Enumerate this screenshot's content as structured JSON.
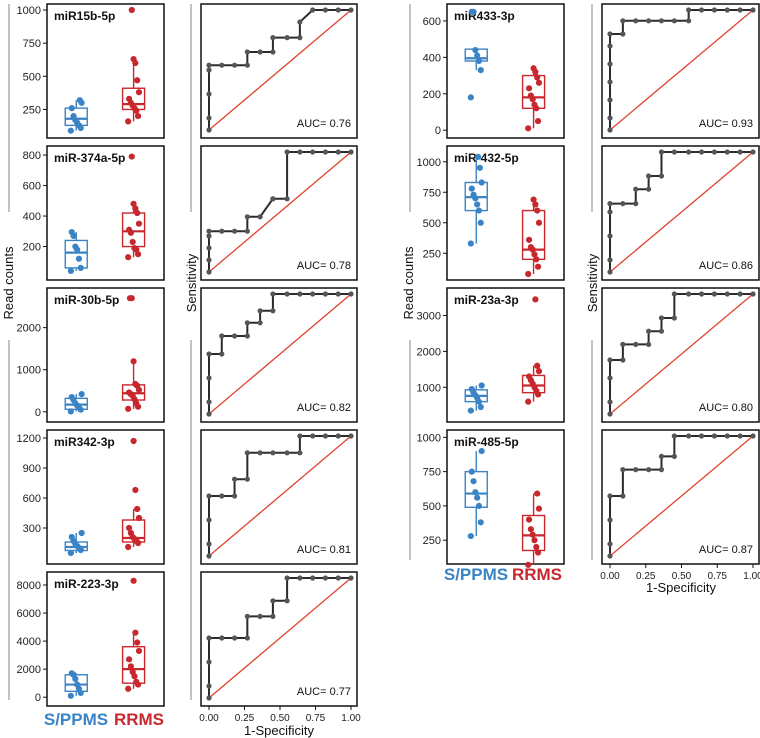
{
  "colors": {
    "spms": "#3a84c6",
    "rrms": "#c8282d",
    "roc_line": "#2b2b2b",
    "roc_point": "#555555",
    "diagonal": "#e0442c"
  },
  "legend": {
    "group1": "S/PPMS",
    "group2": "RRMS"
  },
  "axis_labels": {
    "read_counts": "Read counts",
    "sensitivity": "Sensitivity",
    "specificity": "1-Specificity"
  },
  "roc_ticks": [
    "0.00",
    "0.25",
    "0.50",
    "0.75",
    "1.00"
  ],
  "chart_data": [
    {
      "type": "box",
      "title": "miR15b-5p",
      "ylim": [
        80,
        1000
      ],
      "yticks": [
        250,
        500,
        750,
        1000
      ],
      "groups": [
        {
          "name": "S/PPMS",
          "q1": 130,
          "median": 180,
          "q3": 260,
          "whisker_low": 90,
          "whisker_high": 320,
          "points": [
            90,
            110,
            130,
            150,
            170,
            200,
            260,
            300,
            320
          ]
        },
        {
          "name": "RRMS",
          "q1": 250,
          "median": 290,
          "q3": 410,
          "whisker_low": 160,
          "whisker_high": 630,
          "points": [
            160,
            200,
            240,
            260,
            280,
            300,
            330,
            380,
            470,
            600,
            630,
            1000
          ]
        }
      ],
      "roc": {
        "auc_label": "AUC= 0.76",
        "fpr": [
          0,
          0,
          0,
          0,
          0,
          0.09,
          0.18,
          0.27,
          0.27,
          0.36,
          0.45,
          0.45,
          0.55,
          0.64,
          0.64,
          0.73,
          0.82,
          0.91,
          1.0
        ],
        "tpr": [
          0,
          0.1,
          0.3,
          0.5,
          0.54,
          0.54,
          0.54,
          0.54,
          0.65,
          0.65,
          0.65,
          0.77,
          0.77,
          0.77,
          0.9,
          1.0,
          1.0,
          1.0,
          1.0
        ]
      }
    },
    {
      "type": "box",
      "title": "miR-374a-5p",
      "ylim": [
        20,
        820
      ],
      "yticks": [
        200,
        400,
        600,
        800
      ],
      "groups": [
        {
          "name": "S/PPMS",
          "q1": 60,
          "median": 160,
          "q3": 240,
          "whisker_low": 40,
          "whisker_high": 295,
          "points": [
            40,
            60,
            120,
            180,
            200,
            270,
            295
          ]
        },
        {
          "name": "RRMS",
          "q1": 200,
          "median": 300,
          "q3": 420,
          "whisker_low": 130,
          "whisker_high": 480,
          "points": [
            130,
            150,
            180,
            190,
            230,
            290,
            310,
            350,
            420,
            450,
            480,
            790
          ]
        }
      ],
      "roc": {
        "auc_label": "AUC= 0.78",
        "fpr": [
          0,
          0,
          0,
          0,
          0,
          0.09,
          0.18,
          0.27,
          0.27,
          0.36,
          0.45,
          0.45,
          0.55,
          0.55,
          0.64,
          0.73,
          0.82,
          0.91,
          1.0
        ],
        "tpr": [
          0,
          0.1,
          0.2,
          0.3,
          0.34,
          0.34,
          0.34,
          0.34,
          0.46,
          0.46,
          0.61,
          0.61,
          0.61,
          1.0,
          1.0,
          1.0,
          1.0,
          1.0,
          1.0
        ]
      }
    },
    {
      "type": "box",
      "title": "miR-30b-5p",
      "ylim": [
        -100,
        2800
      ],
      "yticks": [
        0,
        1000,
        2000
      ],
      "groups": [
        {
          "name": "S/PPMS",
          "q1": 60,
          "median": 170,
          "q3": 320,
          "whisker_low": 10,
          "whisker_high": 420,
          "points": [
            10,
            50,
            100,
            150,
            200,
            280,
            350,
            420
          ]
        },
        {
          "name": "RRMS",
          "q1": 280,
          "median": 440,
          "q3": 640,
          "whisker_low": 70,
          "whisker_high": 1200,
          "points": [
            70,
            120,
            200,
            300,
            380,
            420,
            460,
            520,
            620,
            660,
            1200,
            2700,
            2700
          ]
        }
      ],
      "roc": {
        "auc_label": "AUC= 0.82",
        "fpr": [
          0,
          0,
          0,
          0,
          0.09,
          0.09,
          0.18,
          0.27,
          0.27,
          0.36,
          0.36,
          0.45,
          0.45,
          0.55,
          0.64,
          0.73,
          0.82,
          0.91,
          1.0
        ],
        "tpr": [
          0,
          0.1,
          0.3,
          0.5,
          0.5,
          0.65,
          0.65,
          0.65,
          0.76,
          0.76,
          0.86,
          0.86,
          1.0,
          1.0,
          1.0,
          1.0,
          1.0,
          1.0,
          1.0
        ]
      }
    },
    {
      "type": "box",
      "title": "miR342-3p",
      "ylim": [
        0,
        1220
      ],
      "yticks": [
        300,
        600,
        900,
        1200
      ],
      "groups": [
        {
          "name": "S/PPMS",
          "q1": 75,
          "median": 110,
          "q3": 160,
          "whisker_low": 50,
          "whisker_high": 250,
          "points": [
            50,
            80,
            100,
            120,
            140,
            170,
            210,
            250
          ]
        },
        {
          "name": "RRMS",
          "q1": 160,
          "median": 200,
          "q3": 380,
          "whisker_low": 110,
          "whisker_high": 490,
          "points": [
            110,
            150,
            170,
            190,
            210,
            250,
            300,
            400,
            490,
            680,
            1170
          ]
        }
      ],
      "roc": {
        "auc_label": "AUC= 0.81",
        "fpr": [
          0,
          0,
          0,
          0,
          0.09,
          0.18,
          0.18,
          0.27,
          0.27,
          0.36,
          0.45,
          0.55,
          0.64,
          0.64,
          0.73,
          0.82,
          0.91,
          1.0
        ],
        "tpr": [
          0,
          0.1,
          0.3,
          0.5,
          0.5,
          0.5,
          0.64,
          0.64,
          0.86,
          0.86,
          0.86,
          0.86,
          0.86,
          1.0,
          1.0,
          1.0,
          1.0,
          1.0
        ]
      }
    },
    {
      "type": "box",
      "title": "miR-223-3p",
      "ylim": [
        -200,
        8500
      ],
      "yticks": [
        0,
        2000,
        4000,
        6000,
        8000
      ],
      "groups": [
        {
          "name": "S/PPMS",
          "q1": 420,
          "median": 900,
          "q3": 1600,
          "whisker_low": 100,
          "whisker_high": 1700,
          "points": [
            100,
            300,
            600,
            900,
            1300,
            1600,
            1700
          ]
        },
        {
          "name": "RRMS",
          "q1": 1000,
          "median": 2000,
          "q3": 3600,
          "whisker_low": 600,
          "whisker_high": 4600,
          "points": [
            600,
            900,
            1100,
            1500,
            1800,
            2200,
            2700,
            3300,
            3900,
            4600,
            8300
          ]
        }
      ],
      "roc": {
        "auc_label": "AUC= 0.77",
        "fpr": [
          0,
          0,
          0,
          0,
          0.09,
          0.18,
          0.27,
          0.27,
          0.36,
          0.45,
          0.45,
          0.55,
          0.55,
          0.64,
          0.73,
          0.82,
          0.91,
          1.0
        ],
        "tpr": [
          0,
          0.1,
          0.3,
          0.5,
          0.5,
          0.5,
          0.5,
          0.68,
          0.68,
          0.68,
          0.81,
          0.81,
          1.0,
          1.0,
          1.0,
          1.0,
          1.0,
          1.0
        ]
      }
    },
    {
      "type": "box",
      "title": "miR433-3p",
      "ylim": [
        -10,
        660
      ],
      "yticks": [
        0,
        200,
        400,
        600
      ],
      "groups": [
        {
          "name": "S/PPMS",
          "q1": 380,
          "median": 395,
          "q3": 445,
          "whisker_low": 330,
          "whisker_high": 445,
          "points": [
            180,
            330,
            380,
            410,
            440,
            650,
            650
          ]
        },
        {
          "name": "RRMS",
          "q1": 120,
          "median": 180,
          "q3": 300,
          "whisker_low": 10,
          "whisker_high": 340,
          "points": [
            10,
            50,
            120,
            140,
            170,
            190,
            230,
            260,
            290,
            320,
            340
          ]
        }
      ],
      "roc": {
        "auc_label": "AUC= 0.93",
        "fpr": [
          0,
          0,
          0,
          0,
          0,
          0,
          0,
          0.09,
          0.09,
          0.18,
          0.27,
          0.36,
          0.45,
          0.55,
          0.55,
          0.64,
          0.73,
          0.82,
          0.91,
          1.0
        ],
        "tpr": [
          0,
          0.1,
          0.25,
          0.4,
          0.55,
          0.7,
          0.8,
          0.8,
          0.91,
          0.91,
          0.91,
          0.91,
          0.91,
          0.91,
          1.0,
          1.0,
          1.0,
          1.0,
          1.0,
          1.0
        ]
      }
    },
    {
      "type": "box",
      "title": "miR-432-5p",
      "ylim": [
        80,
        1080
      ],
      "yticks": [
        250,
        500,
        750,
        1000
      ],
      "groups": [
        {
          "name": "S/PPMS",
          "q1": 600,
          "median": 710,
          "q3": 830,
          "whisker_low": 330,
          "whisker_high": 1040,
          "points": [
            330,
            500,
            600,
            650,
            700,
            730,
            780,
            830,
            950,
            1040
          ]
        },
        {
          "name": "RRMS",
          "q1": 200,
          "median": 280,
          "q3": 600,
          "whisker_low": 80,
          "whisker_high": 690,
          "points": [
            80,
            140,
            200,
            240,
            280,
            300,
            360,
            500,
            600,
            650,
            690
          ]
        }
      ],
      "roc": {
        "auc_label": "AUC= 0.86",
        "fpr": [
          0,
          0,
          0,
          0,
          0,
          0.09,
          0.18,
          0.18,
          0.27,
          0.27,
          0.36,
          0.36,
          0.45,
          0.55,
          0.64,
          0.73,
          0.82,
          0.91,
          1.0
        ],
        "tpr": [
          0,
          0.1,
          0.3,
          0.5,
          0.57,
          0.57,
          0.57,
          0.69,
          0.69,
          0.8,
          0.8,
          1.0,
          1.0,
          1.0,
          1.0,
          1.0,
          1.0,
          1.0,
          1.0
        ]
      }
    },
    {
      "type": "box",
      "title": "miR-23a-3p",
      "ylim": [
        200,
        3600
      ],
      "yticks": [
        1000,
        2000,
        3000
      ],
      "groups": [
        {
          "name": "S/PPMS",
          "q1": 600,
          "median": 760,
          "q3": 930,
          "whisker_low": 350,
          "whisker_high": 1050,
          "points": [
            350,
            450,
            600,
            700,
            780,
            850,
            950,
            1050
          ]
        },
        {
          "name": "RRMS",
          "q1": 850,
          "median": 1050,
          "q3": 1330,
          "whisker_low": 600,
          "whisker_high": 1600,
          "points": [
            600,
            800,
            900,
            1000,
            1100,
            1200,
            1300,
            1450,
            1600,
            3450
          ]
        }
      ],
      "roc": {
        "auc_label": "AUC= 0.80",
        "fpr": [
          0,
          0,
          0,
          0,
          0.09,
          0.09,
          0.18,
          0.27,
          0.27,
          0.36,
          0.36,
          0.45,
          0.45,
          0.55,
          0.64,
          0.73,
          0.82,
          0.91,
          1.0
        ],
        "tpr": [
          0,
          0.1,
          0.3,
          0.45,
          0.45,
          0.58,
          0.58,
          0.58,
          0.69,
          0.69,
          0.8,
          0.8,
          1.0,
          1.0,
          1.0,
          1.0,
          1.0,
          1.0,
          1.0
        ]
      }
    },
    {
      "type": "box",
      "title": "miR-485-5p",
      "ylim": [
        120,
        1010
      ],
      "yticks": [
        250,
        500,
        750,
        1000
      ],
      "groups": [
        {
          "name": "S/PPMS",
          "q1": 490,
          "median": 590,
          "q3": 750,
          "whisker_low": 280,
          "whisker_high": 900,
          "points": [
            280,
            380,
            500,
            560,
            600,
            680,
            750,
            900
          ]
        },
        {
          "name": "RRMS",
          "q1": 175,
          "median": 285,
          "q3": 430,
          "whisker_low": 70,
          "whisker_high": 590,
          "points": [
            70,
            160,
            200,
            250,
            290,
            330,
            400,
            480,
            590
          ]
        }
      ],
      "roc": {
        "auc_label": "AUC= 0.87",
        "fpr": [
          0,
          0,
          0,
          0,
          0.09,
          0.09,
          0.18,
          0.27,
          0.36,
          0.36,
          0.45,
          0.45,
          0.55,
          0.64,
          0.73,
          0.82,
          0.91,
          1.0
        ],
        "tpr": [
          0,
          0.1,
          0.3,
          0.5,
          0.5,
          0.72,
          0.72,
          0.72,
          0.72,
          0.83,
          0.83,
          1.0,
          1.0,
          1.0,
          1.0,
          1.0,
          1.0,
          1.0
        ]
      }
    }
  ]
}
